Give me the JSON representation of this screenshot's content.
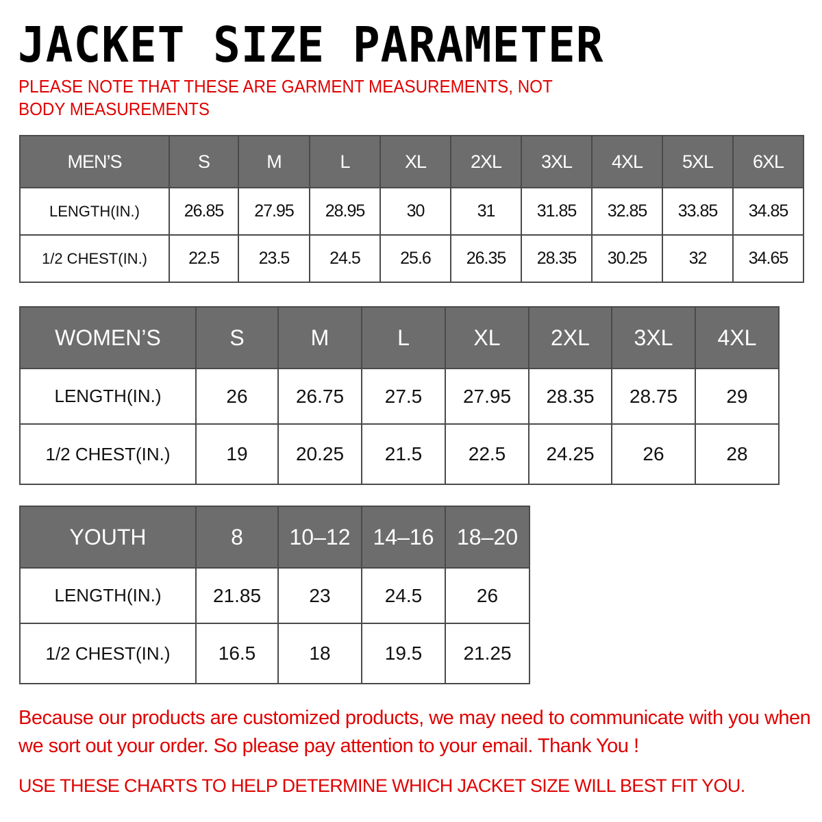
{
  "title": "JACKET SIZE PARAMETER",
  "note": "PLEASE NOTE THAT THESE ARE GARMENT MEASUREMENTS, NOT BODY MEASUREMENTS",
  "colors": {
    "header_bg": "#6d6d6d",
    "accent_red": "#e00000"
  },
  "tables": {
    "men": {
      "header": [
        "MEN’S",
        "S",
        "M",
        "L",
        "XL",
        "2XL",
        "3XL",
        "4XL",
        "5XL",
        "6XL"
      ],
      "rows": [
        [
          "LENGTH(IN.)",
          "26.85",
          "27.95",
          "28.95",
          "30",
          "31",
          "31.85",
          "32.85",
          "33.85",
          "34.85"
        ],
        [
          "1/2 CHEST(IN.)",
          "22.5",
          "23.5",
          "24.5",
          "25.6",
          "26.35",
          "28.35",
          "30.25",
          "32",
          "34.65"
        ]
      ]
    },
    "women": {
      "header": [
        "WOMEN’S",
        "S",
        "M",
        "L",
        "XL",
        "2XL",
        "3XL",
        "4XL"
      ],
      "rows": [
        [
          "LENGTH(IN.)",
          "26",
          "26.75",
          "27.5",
          "27.95",
          "28.35",
          "28.75",
          "29"
        ],
        [
          "1/2 CHEST(IN.)",
          "19",
          "20.25",
          "21.5",
          "22.5",
          "24.25",
          "26",
          "28"
        ]
      ]
    },
    "youth": {
      "header": [
        "YOUTH",
        "8",
        "10–12",
        "14–16",
        "18–20"
      ],
      "rows": [
        [
          "LENGTH(IN.)",
          "21.85",
          "23",
          "24.5",
          "26"
        ],
        [
          "1/2 CHEST(IN.)",
          "16.5",
          "18",
          "19.5",
          "21.25"
        ]
      ]
    }
  },
  "footer": {
    "message": "Because our products are customized products, we may need to communicate with you when we sort out your order. So please pay attention to your email. Thank You !",
    "advice": "USE THESE CHARTS TO HELP DETERMINE WHICH JACKET SIZE WILL BEST FIT YOU."
  }
}
